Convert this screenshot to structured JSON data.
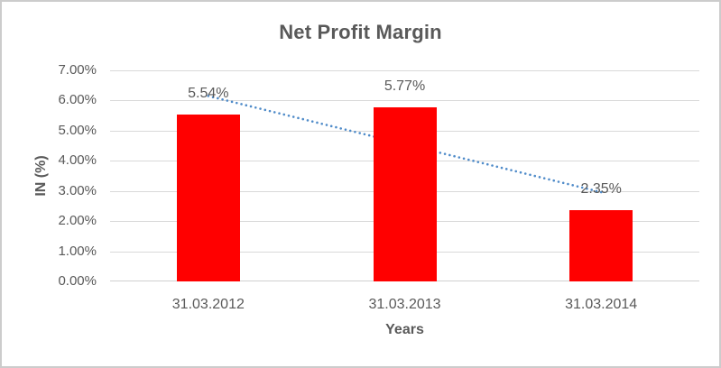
{
  "window": {
    "background": "#ffffff",
    "border_color": "#cccccc"
  },
  "chart_data": {
    "type": "bar",
    "title": "Net Profit Margin",
    "xlabel": "Years",
    "ylabel": "IN (%)",
    "categories": [
      "31.03.2012",
      "31.03.2013",
      "31.03.2014"
    ],
    "values": [
      5.54,
      5.77,
      2.35
    ],
    "data_labels": [
      "5.54%",
      "5.77%",
      "2.35%"
    ],
    "ylim": [
      0,
      7
    ],
    "ytick_step": 1,
    "ytick_labels": [
      "0.00%",
      "1.00%",
      "2.00%",
      "3.00%",
      "4.00%",
      "5.00%",
      "6.00%",
      "7.00%"
    ],
    "grid": true,
    "legend": "none",
    "trendline": {
      "type": "linear",
      "style": "dotted",
      "start_value": 6.15,
      "end_value": 2.96
    },
    "colors": {
      "bar": "#ff0000",
      "trendline": "#4f8bc9",
      "text": "#595959",
      "gridline": "#d9d9d9",
      "axis_line": "#d0d0d0"
    }
  }
}
